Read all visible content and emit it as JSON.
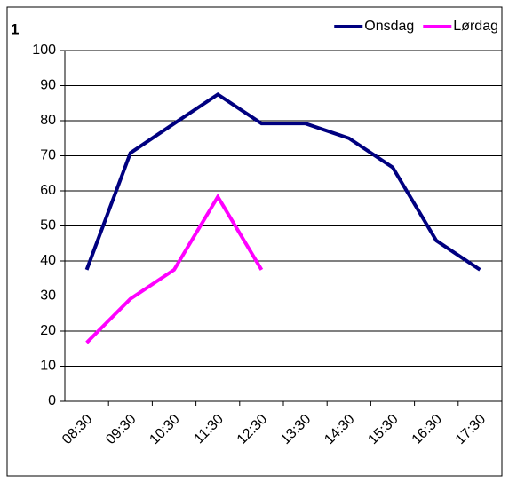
{
  "chart_data": {
    "type": "line",
    "title": "1",
    "categories": [
      "08:30",
      "09:30",
      "10:30",
      "11:30",
      "12:30",
      "13:30",
      "14:30",
      "15:30",
      "16:30",
      "17:30"
    ],
    "series": [
      {
        "name": "Onsdag",
        "color": "#000080",
        "values": [
          37.5,
          70.8,
          79.2,
          87.5,
          79.2,
          79.2,
          75,
          66.7,
          45.8,
          37.5
        ]
      },
      {
        "name": "Lørdag",
        "color": "#ff00ff",
        "values": [
          16.7,
          29.2,
          37.5,
          58.3,
          37.5,
          null,
          null,
          null,
          null,
          null
        ]
      }
    ],
    "ylim": [
      0,
      100
    ],
    "yticks": [
      0,
      10,
      20,
      30,
      40,
      50,
      60,
      70,
      80,
      90,
      100
    ],
    "grid": true,
    "legend": "top-right"
  }
}
